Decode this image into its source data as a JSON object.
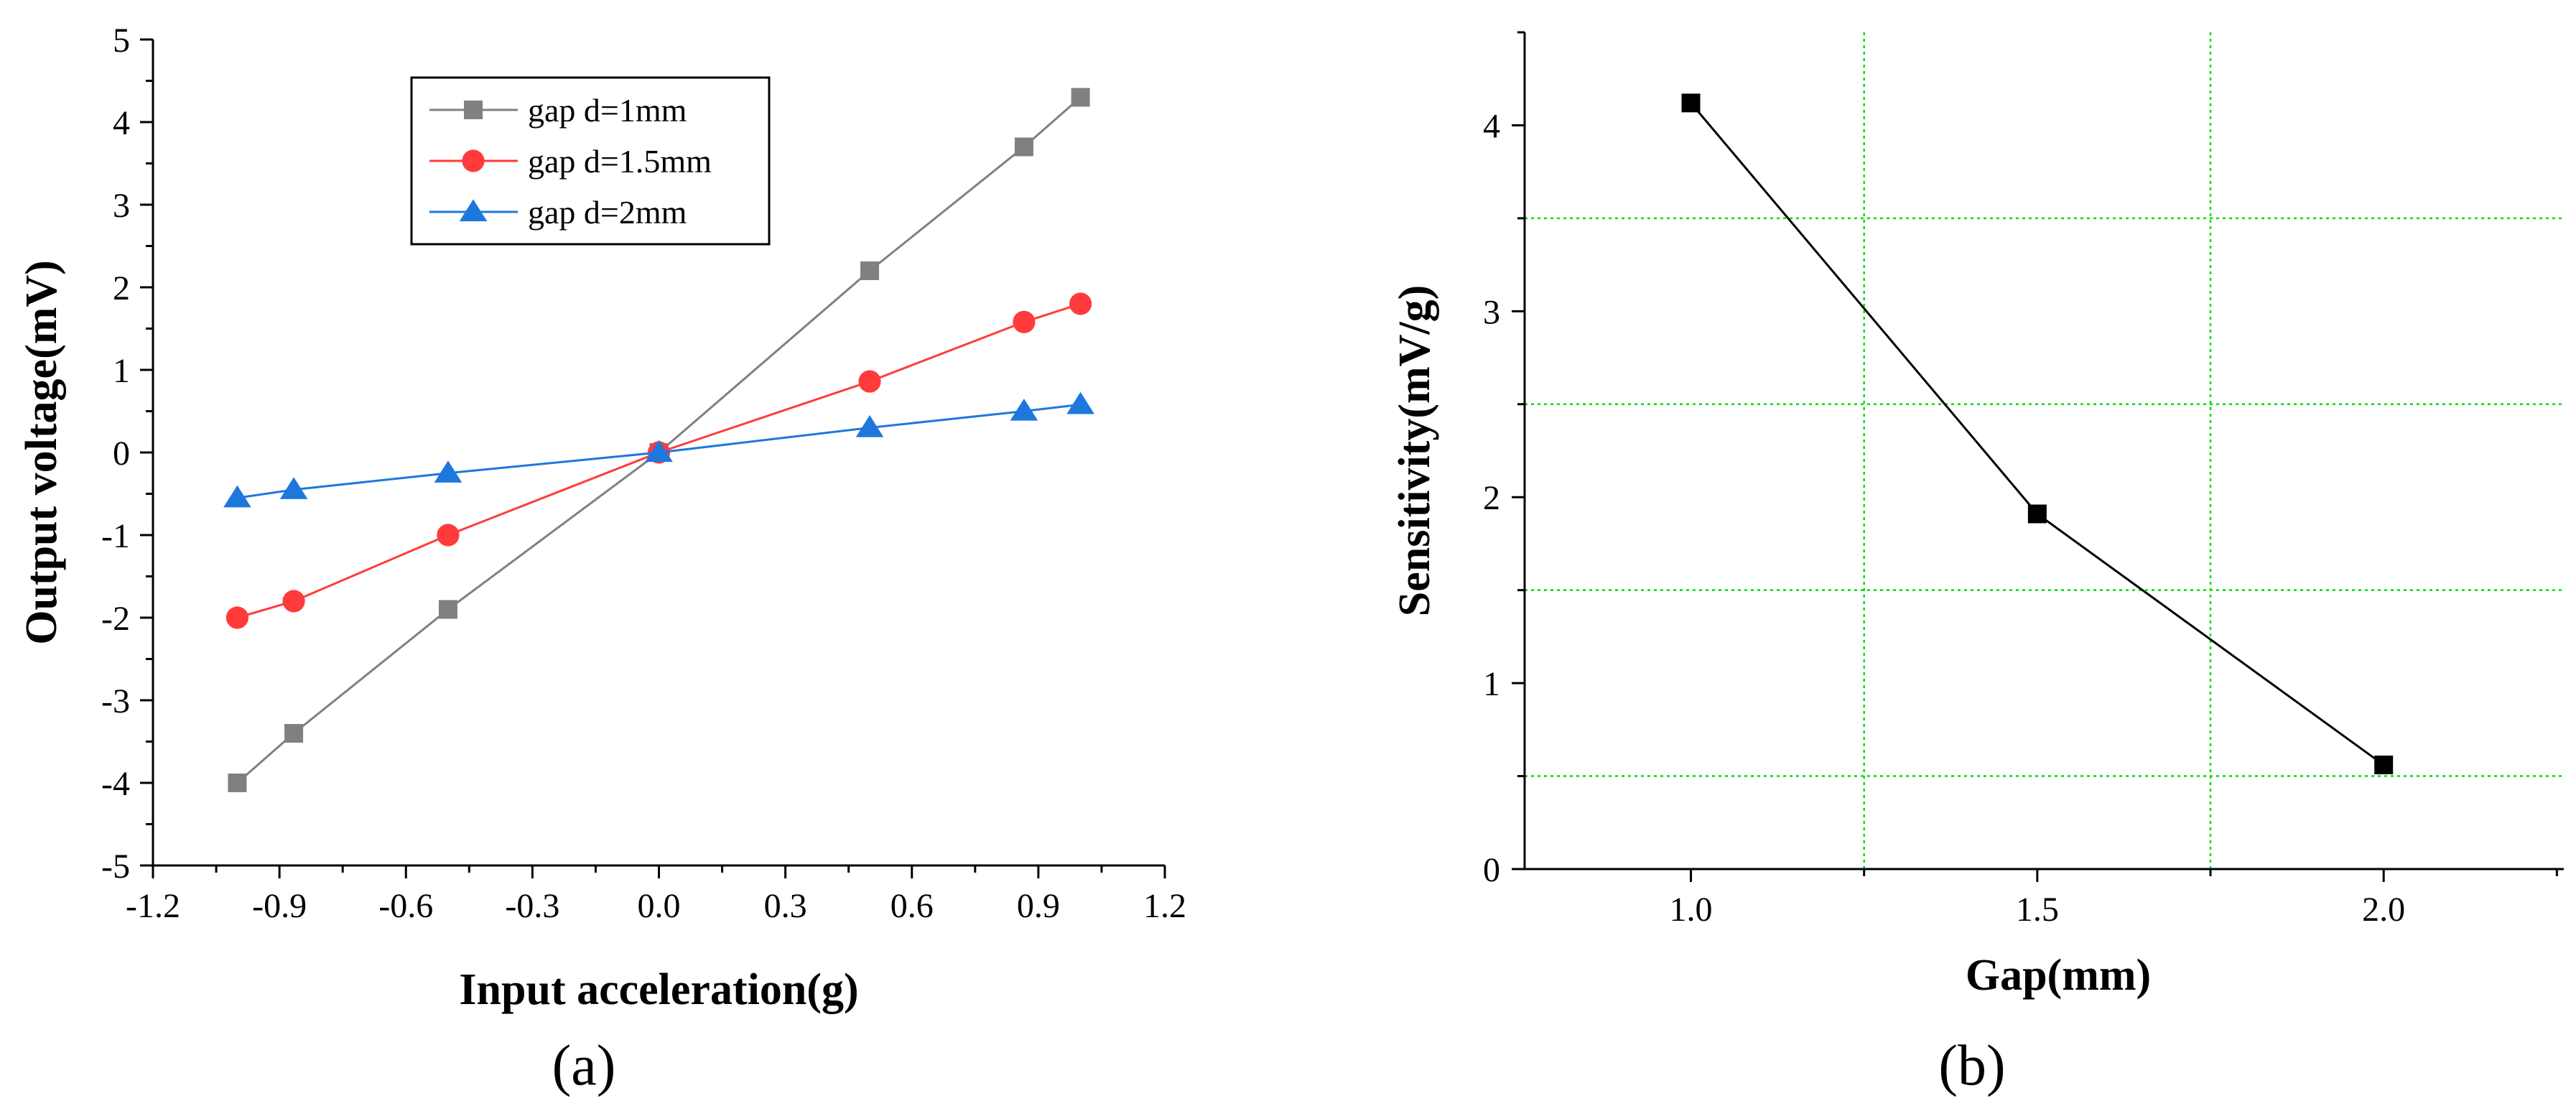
{
  "chart_data": [
    {
      "id": "a",
      "type": "line",
      "panel_label": "(a)",
      "title": "",
      "xlabel": "Input acceleration(g)",
      "ylabel": "Output voltage(mV)",
      "xlim": [
        -1.2,
        1.2
      ],
      "ylim": [
        -5,
        5
      ],
      "xticks": [
        -1.2,
        -0.9,
        -0.6,
        -0.3,
        0.0,
        0.3,
        0.6,
        0.9,
        1.2
      ],
      "xtick_labels": [
        "-1.2",
        "-0.9",
        "-0.6",
        "-0.3",
        "0.0",
        "0.3",
        "0.6",
        "0.9",
        "1.2"
      ],
      "yticks": [
        -5,
        -4,
        -3,
        -2,
        -1,
        0,
        1,
        2,
        3,
        4,
        5
      ],
      "ytick_labels": [
        "-5",
        "-4",
        "-3",
        "-2",
        "-1",
        "0",
        "1",
        "2",
        "3",
        "4",
        "5"
      ],
      "grid": false,
      "legend_position": "top-left",
      "series": [
        {
          "name": "gap d=1mm",
          "color": "#808080",
          "marker": "square",
          "x": [
            -1.0,
            -0.866,
            -0.5,
            0.0,
            0.5,
            0.866,
            1.0
          ],
          "y": [
            -4.0,
            -3.4,
            -1.9,
            0.0,
            2.2,
            3.7,
            4.3
          ]
        },
        {
          "name": "gap d=1.5mm",
          "color": "#ff3b3b",
          "marker": "circle",
          "x": [
            -1.0,
            -0.866,
            -0.5,
            0.0,
            0.5,
            0.866,
            1.0
          ],
          "y": [
            -2.0,
            -1.8,
            -1.0,
            0.0,
            0.86,
            1.58,
            1.8
          ]
        },
        {
          "name": "gap d=2mm",
          "color": "#1e78dc",
          "marker": "triangle",
          "x": [
            -1.0,
            -0.866,
            -0.5,
            0.0,
            0.5,
            0.866,
            1.0
          ],
          "y": [
            -0.55,
            -0.45,
            -0.25,
            0.0,
            0.3,
            0.5,
            0.58
          ]
        }
      ]
    },
    {
      "id": "b",
      "type": "line",
      "panel_label": "(b)",
      "title": "",
      "xlabel": "Gap(mm)",
      "ylabel": "Sensitivity(mV/g)",
      "xlim": [
        0.76,
        2.26
      ],
      "ylim": [
        0,
        4.5
      ],
      "xticks": [
        1.0,
        1.5,
        2.0
      ],
      "xtick_labels": [
        "1.0",
        "1.5",
        "2.0"
      ],
      "yticks": [
        0,
        1,
        2,
        3,
        4
      ],
      "ytick_labels": [
        "0",
        "1",
        "2",
        "3",
        "4"
      ],
      "grid": true,
      "grid_color": "#00dd00",
      "grid_x": [
        1.25,
        1.75
      ],
      "grid_y": [
        0.5,
        1.5,
        2.5,
        3.5
      ],
      "series": [
        {
          "name": "Sensitivity",
          "color": "#000000",
          "marker": "square",
          "x": [
            1.0,
            1.5,
            2.0
          ],
          "y": [
            4.12,
            1.91,
            0.56
          ]
        }
      ]
    }
  ]
}
